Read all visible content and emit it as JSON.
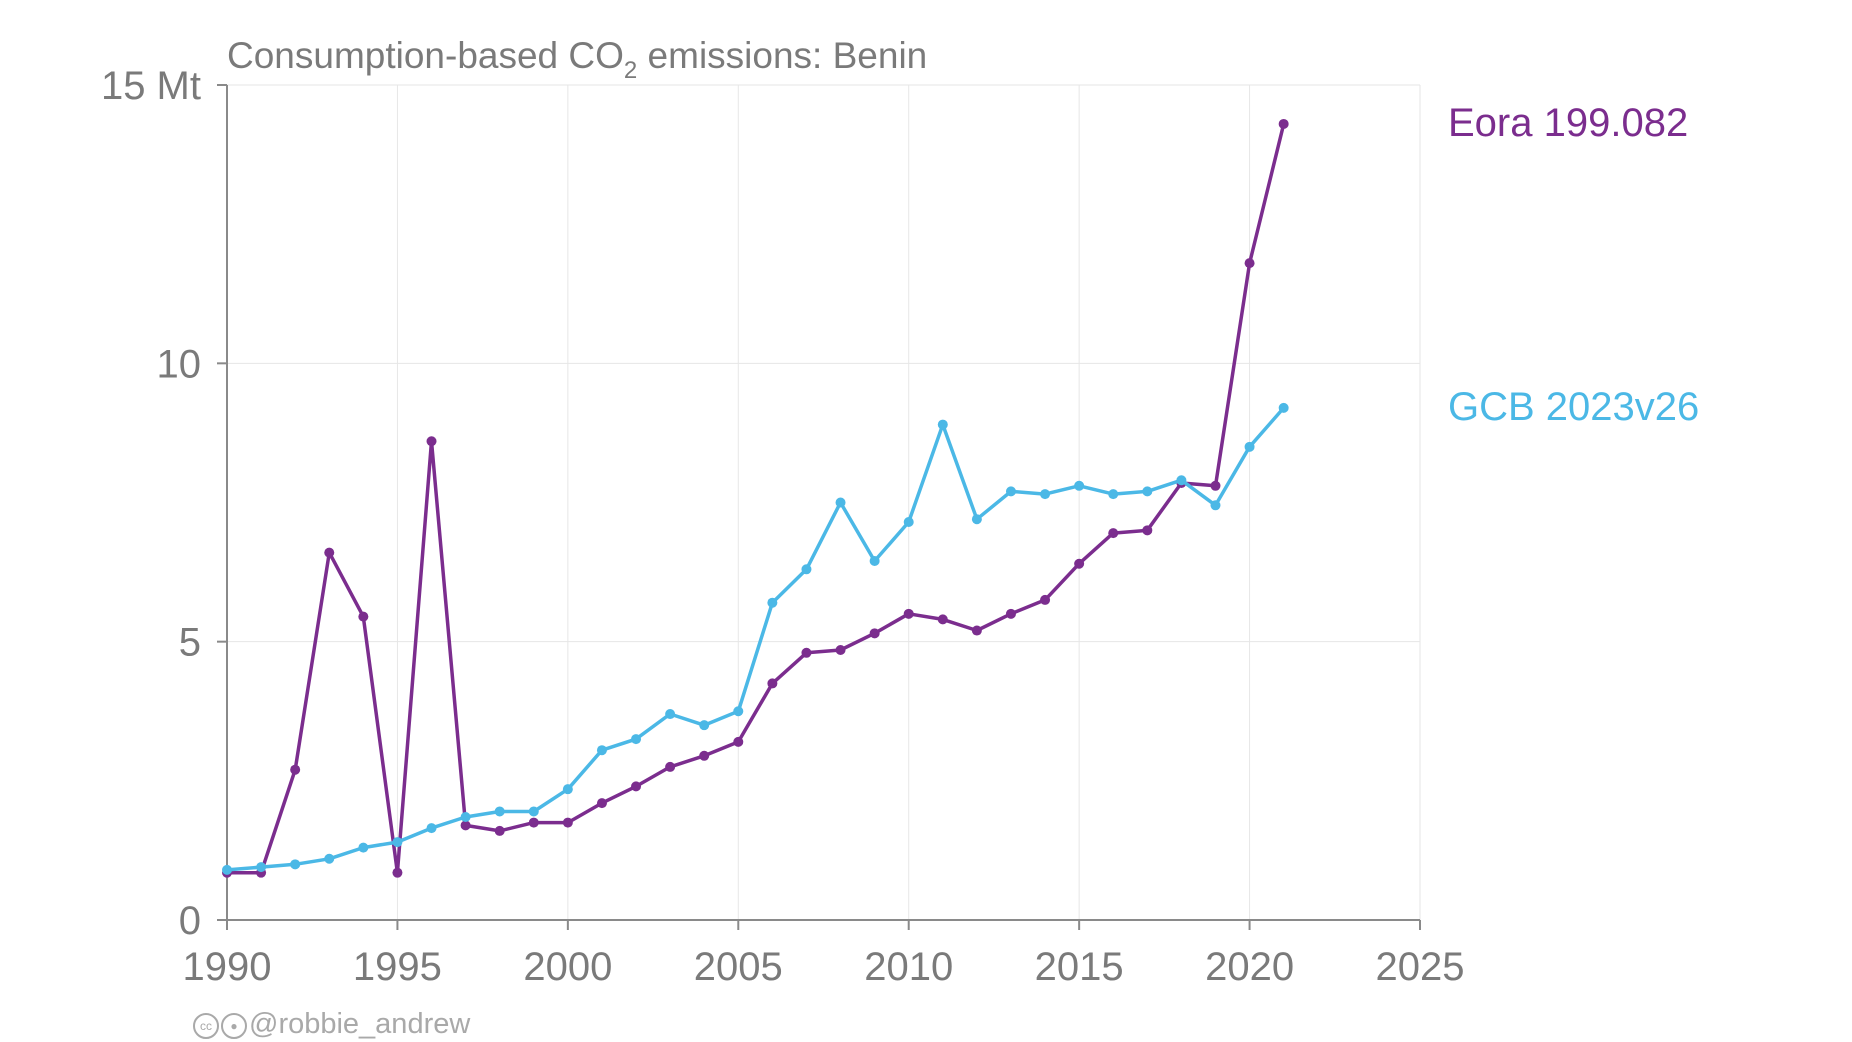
{
  "chart_data": {
    "type": "line",
    "title": "Consumption-based CO",
    "title_subscript": "2",
    "title_rest": " emissions: Benin",
    "xlim": [
      1990,
      2025
    ],
    "ylim": [
      0,
      15
    ],
    "x_ticks": [
      {
        "value": 1990,
        "label": "1990"
      },
      {
        "value": 1995,
        "label": "1995"
      },
      {
        "value": 2000,
        "label": "2000"
      },
      {
        "value": 2005,
        "label": "2005"
      },
      {
        "value": 2010,
        "label": "2010"
      },
      {
        "value": 2015,
        "label": "2015"
      },
      {
        "value": 2020,
        "label": "2020"
      },
      {
        "value": 2025,
        "label": "2025"
      }
    ],
    "y_ticks": [
      {
        "value": 0,
        "label": "0"
      },
      {
        "value": 5,
        "label": "5"
      },
      {
        "value": 10,
        "label": "10"
      },
      {
        "value": 15,
        "label": "15 Mt"
      }
    ],
    "grid": true,
    "series": [
      {
        "name": "Eora 199.082",
        "color": "#7b2d8e",
        "x": [
          1990,
          1991,
          1992,
          1993,
          1994,
          1995,
          1996,
          1997,
          1998,
          1999,
          2000,
          2001,
          2002,
          2003,
          2004,
          2005,
          2006,
          2007,
          2008,
          2009,
          2010,
          2011,
          2012,
          2013,
          2014,
          2015,
          2016,
          2017,
          2018,
          2019,
          2020,
          2021
        ],
        "values": [
          0.85,
          0.85,
          2.7,
          6.6,
          5.45,
          0.85,
          8.6,
          1.7,
          1.6,
          1.75,
          1.75,
          2.1,
          2.4,
          2.75,
          2.95,
          3.2,
          4.25,
          4.8,
          4.85,
          5.15,
          5.5,
          5.4,
          5.2,
          5.5,
          5.75,
          6.4,
          6.95,
          7.0,
          7.85,
          7.8,
          11.8,
          14.3
        ]
      },
      {
        "name": "GCB 2023v26",
        "color": "#4bb8e6",
        "x": [
          1990,
          1991,
          1992,
          1993,
          1994,
          1995,
          1996,
          1997,
          1998,
          1999,
          2000,
          2001,
          2002,
          2003,
          2004,
          2005,
          2006,
          2007,
          2008,
          2009,
          2010,
          2011,
          2012,
          2013,
          2014,
          2015,
          2016,
          2017,
          2018,
          2019,
          2020,
          2021
        ],
        "values": [
          0.9,
          0.95,
          1.0,
          1.1,
          1.3,
          1.4,
          1.65,
          1.85,
          1.95,
          1.95,
          2.35,
          3.05,
          3.25,
          3.7,
          3.5,
          3.75,
          5.7,
          6.3,
          7.5,
          6.45,
          7.15,
          8.9,
          7.2,
          7.7,
          7.65,
          7.8,
          7.65,
          7.7,
          7.9,
          7.45,
          8.5,
          9.2
        ]
      }
    ]
  },
  "credit": {
    "icons": [
      "cc-icon",
      "by-icon"
    ],
    "handle": "@robbie_andrew"
  }
}
